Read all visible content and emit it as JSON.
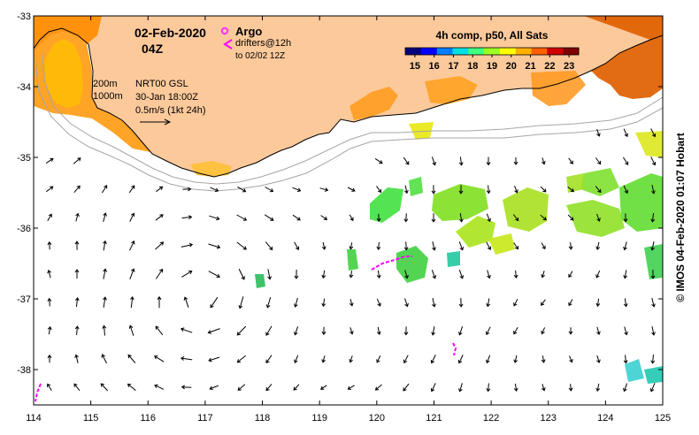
{
  "title": {
    "date": "02-Feb-2020",
    "time": "04Z"
  },
  "legend": {
    "argo_label": "Argo",
    "drifters_label": "drifters@12h",
    "drifters_to": "to 02/02 12Z",
    "depth_200": "200m",
    "depth_1000": "1000m",
    "altimetry": "NRT00 GSL",
    "altimetry_date": "30-Jan 18:00Z",
    "scale_label": "0.5m/s (1kt 24h)",
    "argo_color": "#ff33ff",
    "drifter_color": "#ff00ff"
  },
  "colorbar": {
    "title": "4h comp, p50, All Sats",
    "ticks": [
      "15",
      "16",
      "17",
      "18",
      "19",
      "20",
      "21",
      "22",
      "23"
    ],
    "min": 14.5,
    "max": 23.5,
    "colors": [
      "#00007f",
      "#0000ff",
      "#007fff",
      "#00e0e0",
      "#40ff80",
      "#a0ff20",
      "#ffff00",
      "#ffb000",
      "#ff6000",
      "#d00000",
      "#7f0000"
    ]
  },
  "axes": {
    "x_ticks": [
      "114",
      "115",
      "116",
      "117",
      "118",
      "119",
      "120",
      "121",
      "122",
      "123",
      "124",
      "125"
    ],
    "y_ticks": [
      "-33",
      "-34",
      "-35",
      "-36",
      "-37",
      "-38"
    ],
    "lon_range": [
      114,
      125
    ],
    "lat_range": [
      -38.5,
      -33
    ]
  },
  "credit": "© IMOS 04-Feb-2020 01:07 Hobart",
  "colors": {
    "land": "#fcc99b",
    "coast": "#000000",
    "isobath": "#a6a6a6"
  }
}
